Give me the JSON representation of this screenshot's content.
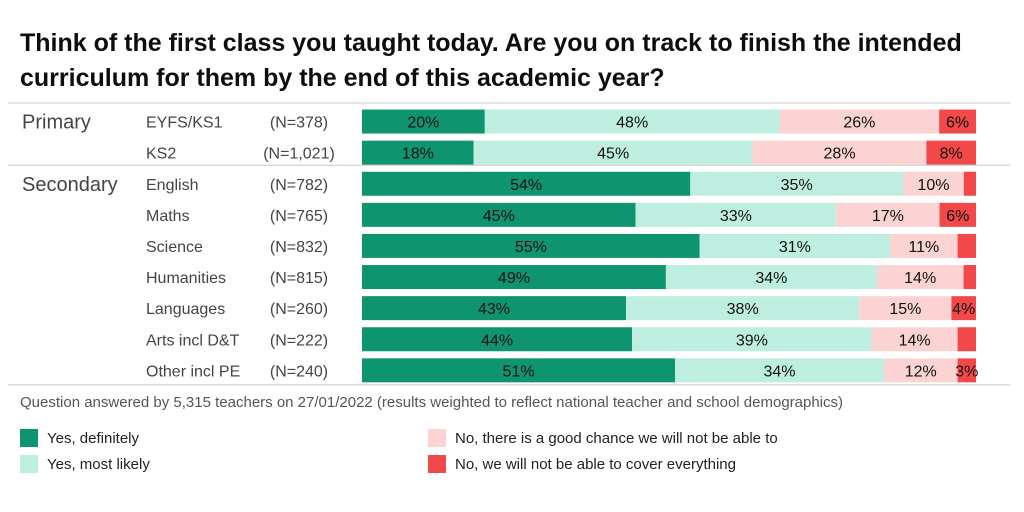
{
  "chart_data": {
    "type": "bar",
    "orientation": "horizontal",
    "stacked": true,
    "title": "Think of the first class you taught today. Are you on track to finish the intended curriculum for them by the end of this academic year?",
    "groups": [
      {
        "label": "Primary",
        "rows": [
          {
            "label": "EYFS/KS1",
            "n": "(N=378)",
            "values": [
              20,
              48,
              26,
              6
            ],
            "labels": [
              "20%",
              "48%",
              "26%",
              "6%"
            ]
          },
          {
            "label": "KS2",
            "n": "(N=1,021)",
            "values": [
              18,
              45,
              28,
              8
            ],
            "labels": [
              "18%",
              "45%",
              "28%",
              "8%"
            ]
          }
        ]
      },
      {
        "label": "Secondary",
        "rows": [
          {
            "label": "English",
            "n": "(N=782)",
            "values": [
              54,
              35,
              10,
              2
            ],
            "labels": [
              "54%",
              "35%",
              "10%",
              ""
            ]
          },
          {
            "label": "Maths",
            "n": "(N=765)",
            "values": [
              45,
              33,
              17,
              6
            ],
            "labels": [
              "45%",
              "33%",
              "17%",
              "6%"
            ]
          },
          {
            "label": "Science",
            "n": "(N=832)",
            "values": [
              55,
              31,
              11,
              3
            ],
            "labels": [
              "55%",
              "31%",
              "11%",
              ""
            ]
          },
          {
            "label": "Humanities",
            "n": "(N=815)",
            "values": [
              49,
              34,
              14,
              2
            ],
            "labels": [
              "49%",
              "34%",
              "14%",
              ""
            ]
          },
          {
            "label": "Languages",
            "n": "(N=260)",
            "values": [
              43,
              38,
              15,
              4
            ],
            "labels": [
              "43%",
              "38%",
              "15%",
              "4%"
            ]
          },
          {
            "label": "Arts incl D&T",
            "n": "(N=222)",
            "values": [
              44,
              39,
              14,
              3
            ],
            "labels": [
              "44%",
              "39%",
              "14%",
              ""
            ]
          },
          {
            "label": "Other incl PE",
            "n": "(N=240)",
            "values": [
              51,
              34,
              12,
              3
            ],
            "labels": [
              "51%",
              "34%",
              "12%",
              "3%"
            ]
          }
        ]
      }
    ],
    "series": [
      {
        "name": "Yes, definitely",
        "color": "#0f9470"
      },
      {
        "name": "Yes, most likely",
        "color": "#bdeedf"
      },
      {
        "name": "No, there is a good chance we will not be able to",
        "color": "#fbd3d3"
      },
      {
        "name": "No, we will not be able to cover everything",
        "color": "#f2484a"
      }
    ],
    "xlim": [
      0,
      100
    ],
    "legend_position": "bottom",
    "grid": false
  },
  "footnote": "Question answered by 5,315 teachers on 27/01/2022 (results weighted to reflect national teacher and school demographics)"
}
